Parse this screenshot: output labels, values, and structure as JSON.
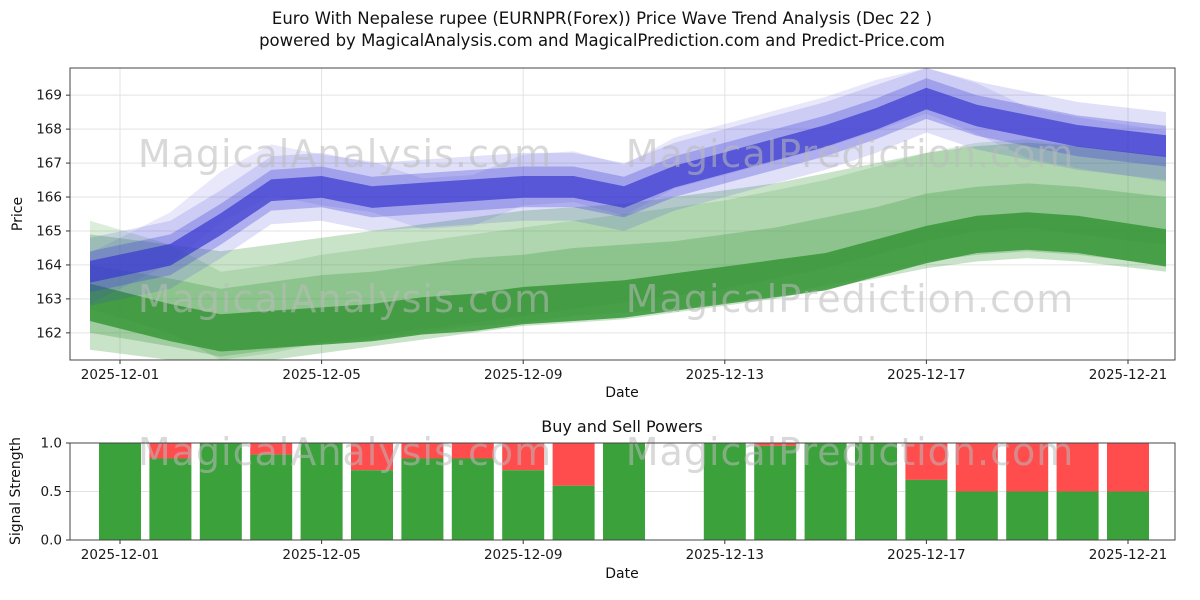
{
  "title": {
    "line1": "Euro With Nepalese rupee (EURNPR(Forex)) Price Wave Trend Analysis (Dec 22 )",
    "line2": "powered by MagicalAnalysis.com and MagicalPrediction.com and Predict-Price.com"
  },
  "watermarks": {
    "left": "MagicalAnalysis.com",
    "right": "MagicalPrediction.com"
  },
  "chart_data": [
    {
      "type": "area",
      "name": "price-wave-trend",
      "xlabel": "Date",
      "ylabel": "Price",
      "ylim": [
        161.2,
        169.8
      ],
      "grid": true,
      "y_ticks": [
        162,
        163,
        164,
        165,
        166,
        167,
        168,
        169
      ],
      "x_ticks": [
        "2025-12-01",
        "2025-12-05",
        "2025-12-09",
        "2025-12-13",
        "2025-12-17",
        "2025-12-21"
      ],
      "dates": [
        "2025-12-01",
        "2025-12-02",
        "2025-12-03",
        "2025-12-04",
        "2025-12-05",
        "2025-12-06",
        "2025-12-07",
        "2025-12-08",
        "2025-12-09",
        "2025-12-10",
        "2025-12-11",
        "2025-12-12",
        "2025-12-13",
        "2025-12-14",
        "2025-12-15",
        "2025-12-16",
        "2025-12-17",
        "2025-12-18",
        "2025-12-19",
        "2025-12-20",
        "2025-12-21"
      ],
      "bands": [
        {
          "name": "green-trend-outer",
          "color": "#3e9c3e",
          "opacity": 0.28,
          "halfwidth": 1.7,
          "center": [
            163.2,
            162.9,
            162.7,
            162.9,
            163.1,
            163.3,
            163.5,
            163.7,
            163.9,
            164.0,
            164.1,
            164.3,
            164.5,
            164.7,
            165.0,
            165.3,
            165.6,
            165.8,
            165.9,
            165.8,
            165.5
          ]
        },
        {
          "name": "green-trend-alt",
          "color": "#3e9c3e",
          "opacity": 0.18,
          "halfwidth": 1.3,
          "center": [
            164.0,
            163.3,
            162.5,
            162.7,
            163.0,
            163.2,
            163.4,
            163.6,
            163.8,
            164.0,
            164.2,
            164.4,
            164.6,
            164.9,
            165.2,
            165.6,
            166.0,
            166.3,
            166.4,
            166.2,
            165.9
          ]
        },
        {
          "name": "green-trend-mid",
          "color": "#3e9c3e",
          "opacity": 0.3,
          "halfwidth": 1.0,
          "center": [
            163.0,
            162.6,
            162.3,
            162.5,
            162.7,
            162.8,
            163.0,
            163.2,
            163.3,
            163.5,
            163.6,
            163.7,
            163.9,
            164.1,
            164.4,
            164.7,
            165.1,
            165.3,
            165.4,
            165.3,
            165.0
          ]
        },
        {
          "name": "green-trend-core",
          "color": "#379737",
          "opacity": 0.85,
          "halfwidth": 0.55,
          "center": [
            162.9,
            162.3,
            162.0,
            162.1,
            162.2,
            162.3,
            162.5,
            162.6,
            162.8,
            162.9,
            163.0,
            163.2,
            163.4,
            163.6,
            163.8,
            164.2,
            164.6,
            164.9,
            165.0,
            164.9,
            164.5
          ]
        },
        {
          "name": "blue-wave-alt",
          "color": "#4040d8",
          "opacity": 0.12,
          "halfwidth": 0.75,
          "center": [
            163.6,
            164.8,
            166.0,
            166.8,
            166.5,
            166.3,
            165.8,
            165.9,
            166.5,
            166.6,
            166.2,
            167.0,
            167.4,
            167.8,
            168.2,
            168.7,
            169.2,
            168.6,
            167.9,
            167.6,
            167.2
          ]
        },
        {
          "name": "blue-wave-outer",
          "color": "#4040d8",
          "opacity": 0.16,
          "halfwidth": 1.0,
          "center": [
            163.8,
            164.3,
            165.2,
            166.2,
            166.3,
            166.0,
            166.1,
            166.2,
            166.3,
            166.3,
            166.0,
            166.6,
            167.0,
            167.4,
            167.8,
            168.3,
            168.9,
            168.4,
            168.1,
            167.8,
            167.5
          ]
        },
        {
          "name": "blue-wave-mid",
          "color": "#4040d8",
          "opacity": 0.3,
          "halfwidth": 0.6,
          "center": [
            163.8,
            164.3,
            165.2,
            166.2,
            166.3,
            166.0,
            166.1,
            166.2,
            166.3,
            166.3,
            166.0,
            166.6,
            167.0,
            167.4,
            167.8,
            168.3,
            168.9,
            168.4,
            168.1,
            167.8,
            167.5
          ]
        },
        {
          "name": "blue-wave-core",
          "color": "#3838cf",
          "opacity": 0.7,
          "halfwidth": 0.32,
          "center": [
            163.8,
            164.3,
            165.2,
            166.2,
            166.3,
            166.0,
            166.1,
            166.2,
            166.3,
            166.3,
            166.0,
            166.6,
            167.0,
            167.4,
            167.8,
            168.3,
            168.9,
            168.4,
            168.1,
            167.8,
            167.5
          ]
        }
      ]
    },
    {
      "type": "bar",
      "name": "buy-sell-powers",
      "title": "Buy and Sell Powers",
      "xlabel": "Date",
      "ylabel": "Signal Strength",
      "ylim": [
        0.0,
        1.0
      ],
      "grid": true,
      "y_ticks": [
        0.0,
        0.5,
        1.0
      ],
      "x_ticks": [
        "2025-12-01",
        "2025-12-05",
        "2025-12-09",
        "2025-12-13",
        "2025-12-17",
        "2025-12-21"
      ],
      "series": [
        {
          "name": "buy",
          "color": "#3ba13b"
        },
        {
          "name": "sell",
          "color": "#ff4d4d"
        }
      ],
      "bars": [
        {
          "date": "2025-12-01",
          "buy": 1.0,
          "sell": 0.0
        },
        {
          "date": "2025-12-02",
          "buy": 0.84,
          "sell": 0.16
        },
        {
          "date": "2025-12-03",
          "buy": 1.0,
          "sell": 0.0
        },
        {
          "date": "2025-12-04",
          "buy": 0.88,
          "sell": 0.12
        },
        {
          "date": "2025-12-05",
          "buy": 1.0,
          "sell": 0.0
        },
        {
          "date": "2025-12-06",
          "buy": 0.72,
          "sell": 0.28
        },
        {
          "date": "2025-12-07",
          "buy": 0.84,
          "sell": 0.16
        },
        {
          "date": "2025-12-08",
          "buy": 0.84,
          "sell": 0.16
        },
        {
          "date": "2025-12-09",
          "buy": 0.72,
          "sell": 0.28
        },
        {
          "date": "2025-12-10",
          "buy": 0.56,
          "sell": 0.44
        },
        {
          "date": "2025-12-11",
          "buy": 1.0,
          "sell": 0.0
        },
        {
          "date": "2025-12-13",
          "buy": 1.0,
          "sell": 0.0
        },
        {
          "date": "2025-12-14",
          "buy": 0.97,
          "sell": 0.03
        },
        {
          "date": "2025-12-15",
          "buy": 1.0,
          "sell": 0.0
        },
        {
          "date": "2025-12-16",
          "buy": 1.0,
          "sell": 0.0
        },
        {
          "date": "2025-12-17",
          "buy": 0.62,
          "sell": 0.38
        },
        {
          "date": "2025-12-18",
          "buy": 0.5,
          "sell": 0.5
        },
        {
          "date": "2025-12-19",
          "buy": 0.5,
          "sell": 0.5
        },
        {
          "date": "2025-12-20",
          "buy": 0.5,
          "sell": 0.5
        },
        {
          "date": "2025-12-21",
          "buy": 0.5,
          "sell": 0.5
        }
      ]
    }
  ]
}
